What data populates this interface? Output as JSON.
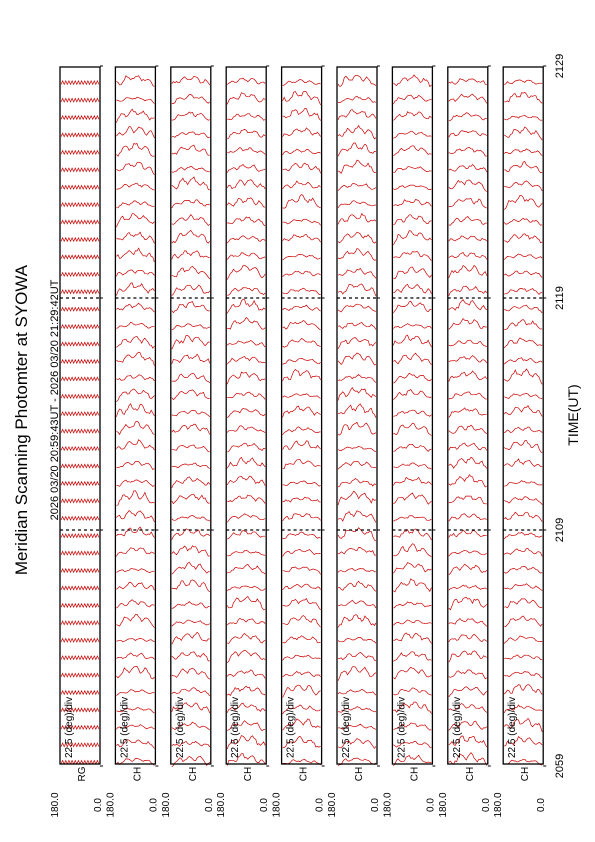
{
  "chart_data": {
    "type": "line",
    "title": "Meridian Scanning Photomter at SYOWA",
    "subtitle": "2026 03/20 20:59:43UT - 2026 03/20 21:29:42UT",
    "xlabel": "TIME(UT)",
    "x_ticks": [
      "2059",
      "2109",
      "2119",
      "2129"
    ],
    "x_range": [
      "20:59:43",
      "21:29:42"
    ],
    "orientation": "rotated-90-counterclockwise",
    "panels": [
      {
        "channel_label": "RG",
        "scale_label": "22.5 (deg)/div",
        "ymax_label": "180.0",
        "ymin_label": "0.0"
      },
      {
        "channel_label": "CH",
        "scale_label": "22.5 (deg)/div",
        "ymax_label": "180.0",
        "ymin_label": "0.0"
      },
      {
        "channel_label": "CH",
        "scale_label": "22.5 (deg)/div",
        "ymax_label": "180.0",
        "ymin_label": "0.0"
      },
      {
        "channel_label": "CH",
        "scale_label": "22.5 (deg)/div",
        "ymax_label": "180.0",
        "ymin_label": "0.0"
      },
      {
        "channel_label": "CH",
        "scale_label": "22.5 (deg)/div",
        "ymax_label": "180.0",
        "ymin_label": "0.0"
      },
      {
        "channel_label": "CH",
        "scale_label": "22.5 (deg)/div",
        "ymax_label": "180.0",
        "ymin_label": "0.0"
      },
      {
        "channel_label": "CH",
        "scale_label": "22.5 (deg)/div",
        "ymax_label": "180.0",
        "ymin_label": "0.0"
      },
      {
        "channel_label": "CH",
        "scale_label": "22.5 (deg)/div",
        "ymax_label": "180.0",
        "ymin_label": "0.0"
      },
      {
        "channel_label": "CH",
        "scale_label": "22.5 (deg)/div",
        "ymax_label": "180.0",
        "ymin_label": "0.0"
      }
    ],
    "trace_color": "#cc0000",
    "dashed_marker_times": [
      "2109",
      "2119"
    ],
    "grid": false
  }
}
